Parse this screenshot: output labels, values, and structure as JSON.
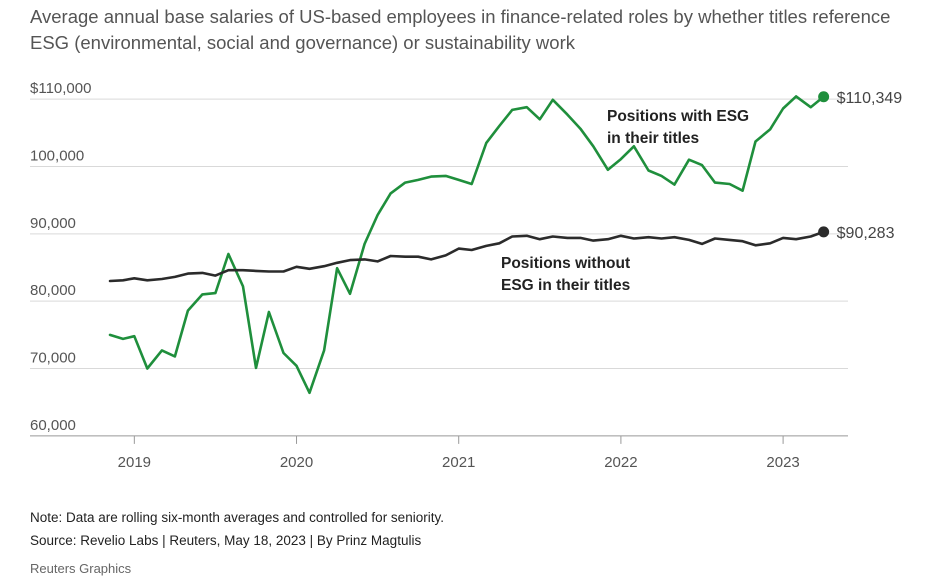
{
  "header": {
    "title": "Average annual base salaries of US-based employees in finance-related roles by whether titles reference ESG (environmental, social and governance) or sustainability work"
  },
  "footer": {
    "note": "Note: Data are rolling six-month averages and controlled for seniority.",
    "source": "Source: Revelio Labs | Reuters, May 18, 2023 | By Prinz Magtulis",
    "credit": "Reuters Graphics"
  },
  "colors": {
    "esg": "#1f8f3c",
    "non_esg": "#2b2b2b",
    "grid": "#d9d9d9",
    "axis": "#999999"
  },
  "chart_data": {
    "type": "line",
    "title": "Average annual base salaries of US-based employees in finance-related roles by whether titles reference ESG (environmental, social and governance) or sustainability work",
    "xlabel": "",
    "ylabel": "",
    "xlim": [
      2018.85,
      2023.32
    ],
    "ylim": [
      58500,
      111500
    ],
    "y_ticks": [
      60000,
      70000,
      80000,
      90000,
      100000,
      110000
    ],
    "y_tick_labels": [
      "60,000",
      "70,000",
      "80,000",
      "90,000",
      "100,000",
      "$110,000"
    ],
    "x_ticks": [
      2019,
      2020,
      2021,
      2022,
      2023
    ],
    "x_tick_labels": [
      "2019",
      "2020",
      "2021",
      "2022",
      "2023"
    ],
    "grid": true,
    "series": [
      {
        "name": "Positions with ESG in their titles",
        "label_lines": [
          "Positions with ESG",
          "in their titles"
        ],
        "end_label": "$110,349",
        "color": "#1f8f3c",
        "x": [
          2018.85,
          2018.93,
          2019.0,
          2019.08,
          2019.17,
          2019.25,
          2019.33,
          2019.42,
          2019.5,
          2019.58,
          2019.67,
          2019.75,
          2019.83,
          2019.92,
          2020.0,
          2020.08,
          2020.17,
          2020.25,
          2020.33,
          2020.42,
          2020.5,
          2020.58,
          2020.67,
          2020.75,
          2020.83,
          2020.92,
          2021.0,
          2021.08,
          2021.17,
          2021.25,
          2021.33,
          2021.42,
          2021.5,
          2021.58,
          2021.67,
          2021.75,
          2021.83,
          2021.92,
          2022.0,
          2022.08,
          2022.17,
          2022.25,
          2022.33,
          2022.42,
          2022.5,
          2022.58,
          2022.67,
          2022.75,
          2022.83,
          2022.92,
          2023.0,
          2023.08,
          2023.17,
          2023.25
        ],
        "values": [
          75000,
          74400,
          74800,
          70000,
          72700,
          71800,
          78600,
          81000,
          81200,
          87000,
          82200,
          70100,
          78400,
          72300,
          70400,
          66400,
          72700,
          84900,
          81100,
          88500,
          92800,
          96000,
          97600,
          98000,
          98500,
          98600,
          98000,
          97400,
          103500,
          106000,
          108400,
          108800,
          107000,
          109900,
          107700,
          105600,
          103000,
          99500,
          101100,
          103000,
          99400,
          98600,
          97300,
          101000,
          100200,
          97600,
          97400,
          96400,
          103700,
          105500,
          108600,
          110400,
          108800,
          110349
        ]
      },
      {
        "name": "Positions without ESG in their titles",
        "label_lines": [
          "Positions without",
          "ESG in their titles"
        ],
        "end_label": "$90,283",
        "color": "#2b2b2b",
        "x": [
          2018.85,
          2018.93,
          2019.0,
          2019.08,
          2019.17,
          2019.25,
          2019.33,
          2019.42,
          2019.5,
          2019.58,
          2019.67,
          2019.75,
          2019.83,
          2019.92,
          2020.0,
          2020.08,
          2020.17,
          2020.25,
          2020.33,
          2020.42,
          2020.5,
          2020.58,
          2020.67,
          2020.75,
          2020.83,
          2020.92,
          2021.0,
          2021.08,
          2021.17,
          2021.25,
          2021.33,
          2021.42,
          2021.5,
          2021.58,
          2021.67,
          2021.75,
          2021.83,
          2021.92,
          2022.0,
          2022.08,
          2022.17,
          2022.25,
          2022.33,
          2022.42,
          2022.5,
          2022.58,
          2022.67,
          2022.75,
          2022.83,
          2022.92,
          2023.0,
          2023.08,
          2023.17,
          2023.25
        ],
        "values": [
          83000,
          83100,
          83400,
          83100,
          83300,
          83600,
          84100,
          84200,
          83800,
          84600,
          84600,
          84500,
          84400,
          84400,
          85100,
          84800,
          85200,
          85700,
          86100,
          86200,
          85900,
          86700,
          86600,
          86600,
          86200,
          86800,
          87800,
          87600,
          88200,
          88600,
          89600,
          89700,
          89200,
          89600,
          89400,
          89400,
          89000,
          89200,
          89700,
          89300,
          89500,
          89300,
          89500,
          89100,
          88500,
          89300,
          89100,
          88900,
          88300,
          88600,
          89400,
          89200,
          89600,
          90283
        ]
      }
    ]
  }
}
